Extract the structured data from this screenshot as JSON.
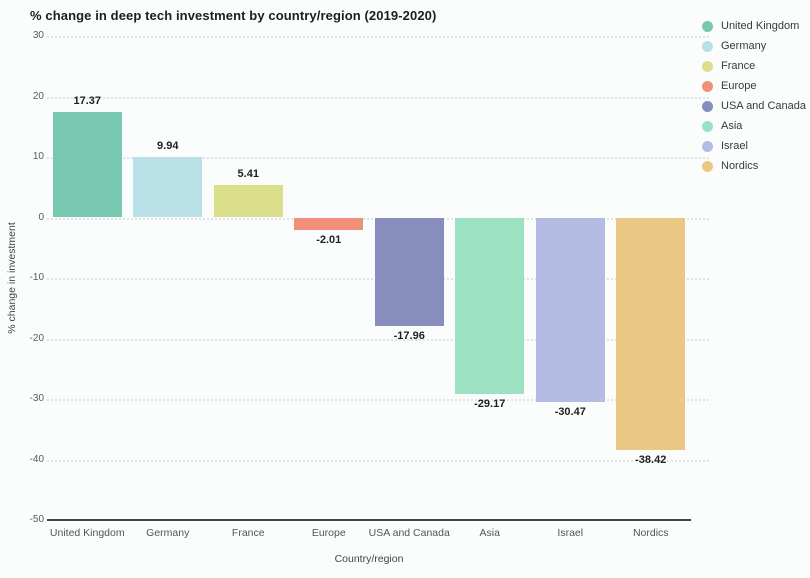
{
  "chart_data": {
    "type": "bar",
    "title": "% change in deep tech investment by country/region (2019-2020)",
    "xlabel": "Country/region",
    "ylabel": "% change in investment",
    "categories": [
      "United Kingdom",
      "Germany",
      "France",
      "Europe",
      "USA and Canada",
      "Asia",
      "Israel",
      "Nordics"
    ],
    "values": [
      17.37,
      9.94,
      5.41,
      -2.01,
      -17.96,
      -29.17,
      -30.47,
      -38.42
    ],
    "value_labels": [
      "17.37",
      "9.94",
      "5.41",
      "-2.01",
      "-17.96",
      "-29.17",
      "-30.47",
      "-38.42"
    ],
    "colors": [
      "#78c7b0",
      "#b9dfe7",
      "#dbdf8c",
      "#f0907a",
      "#878ebd",
      "#9ce1c1",
      "#b5bce4",
      "#eac883"
    ],
    "ylim": [
      -50,
      30
    ],
    "yticks": [
      30,
      20,
      10,
      0,
      -10,
      -20,
      -30,
      -40,
      -50
    ],
    "grid": "horizontal dotted",
    "legend": {
      "position": "right",
      "entries": [
        "United Kingdom",
        "Germany",
        "France",
        "Europe",
        "USA and Canada",
        "Asia",
        "Israel",
        "Nordics"
      ]
    }
  }
}
